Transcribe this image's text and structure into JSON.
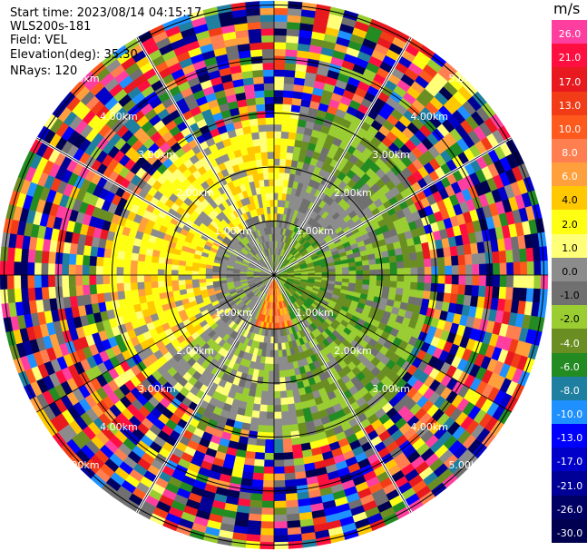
{
  "header": {
    "start_time": "Start time: 2023/08/14 04:15:17",
    "instrument": "WLS200s-181",
    "field": "Field: VEL",
    "elevation": "Elevation(deg): 35.30",
    "nrays": "NRays: 120"
  },
  "chart_data": {
    "type": "heatmap",
    "projection": "polar-ppi",
    "field": "VEL",
    "n_rays": 120,
    "range_rings_km": [
      1.0,
      2.0,
      3.0,
      4.0,
      5.0
    ],
    "ring_labels": [
      "1.00km",
      "2.00km",
      "3.00km",
      "4.00km",
      "5.00km"
    ],
    "colorbar": {
      "unit": "m/s",
      "tick_labels": [
        "26.0",
        "21.0",
        "17.0",
        "13.0",
        "10.0",
        "8.0",
        "6.0",
        "4.0",
        "2.0",
        "1.0",
        "0.0",
        "-1.0",
        "-2.0",
        "-4.0",
        "-6.0",
        "-8.0",
        "-10.0",
        "-13.0",
        "-17.0",
        "-21.0",
        "-26.0",
        "-30.0"
      ],
      "colors": [
        "#ff3fa0",
        "#ff0f3f",
        "#e8191f",
        "#f23c18",
        "#ff5a1e",
        "#ff7f50",
        "#ffa03c",
        "#ffc800",
        "#ffff14",
        "#ffff78",
        "#8c8c8c",
        "#707070",
        "#9acd32",
        "#6b8e23",
        "#228b22",
        "#1f7fa0",
        "#1e90ff",
        "#0000ff",
        "#0000c8",
        "#000096",
        "#000064",
        "#000050"
      ]
    },
    "pattern": {
      "near_field_positive": "yellow/orange west and south-west",
      "near_field_negative": "green east and north-east",
      "far_field": "noise (all colors)"
    }
  }
}
